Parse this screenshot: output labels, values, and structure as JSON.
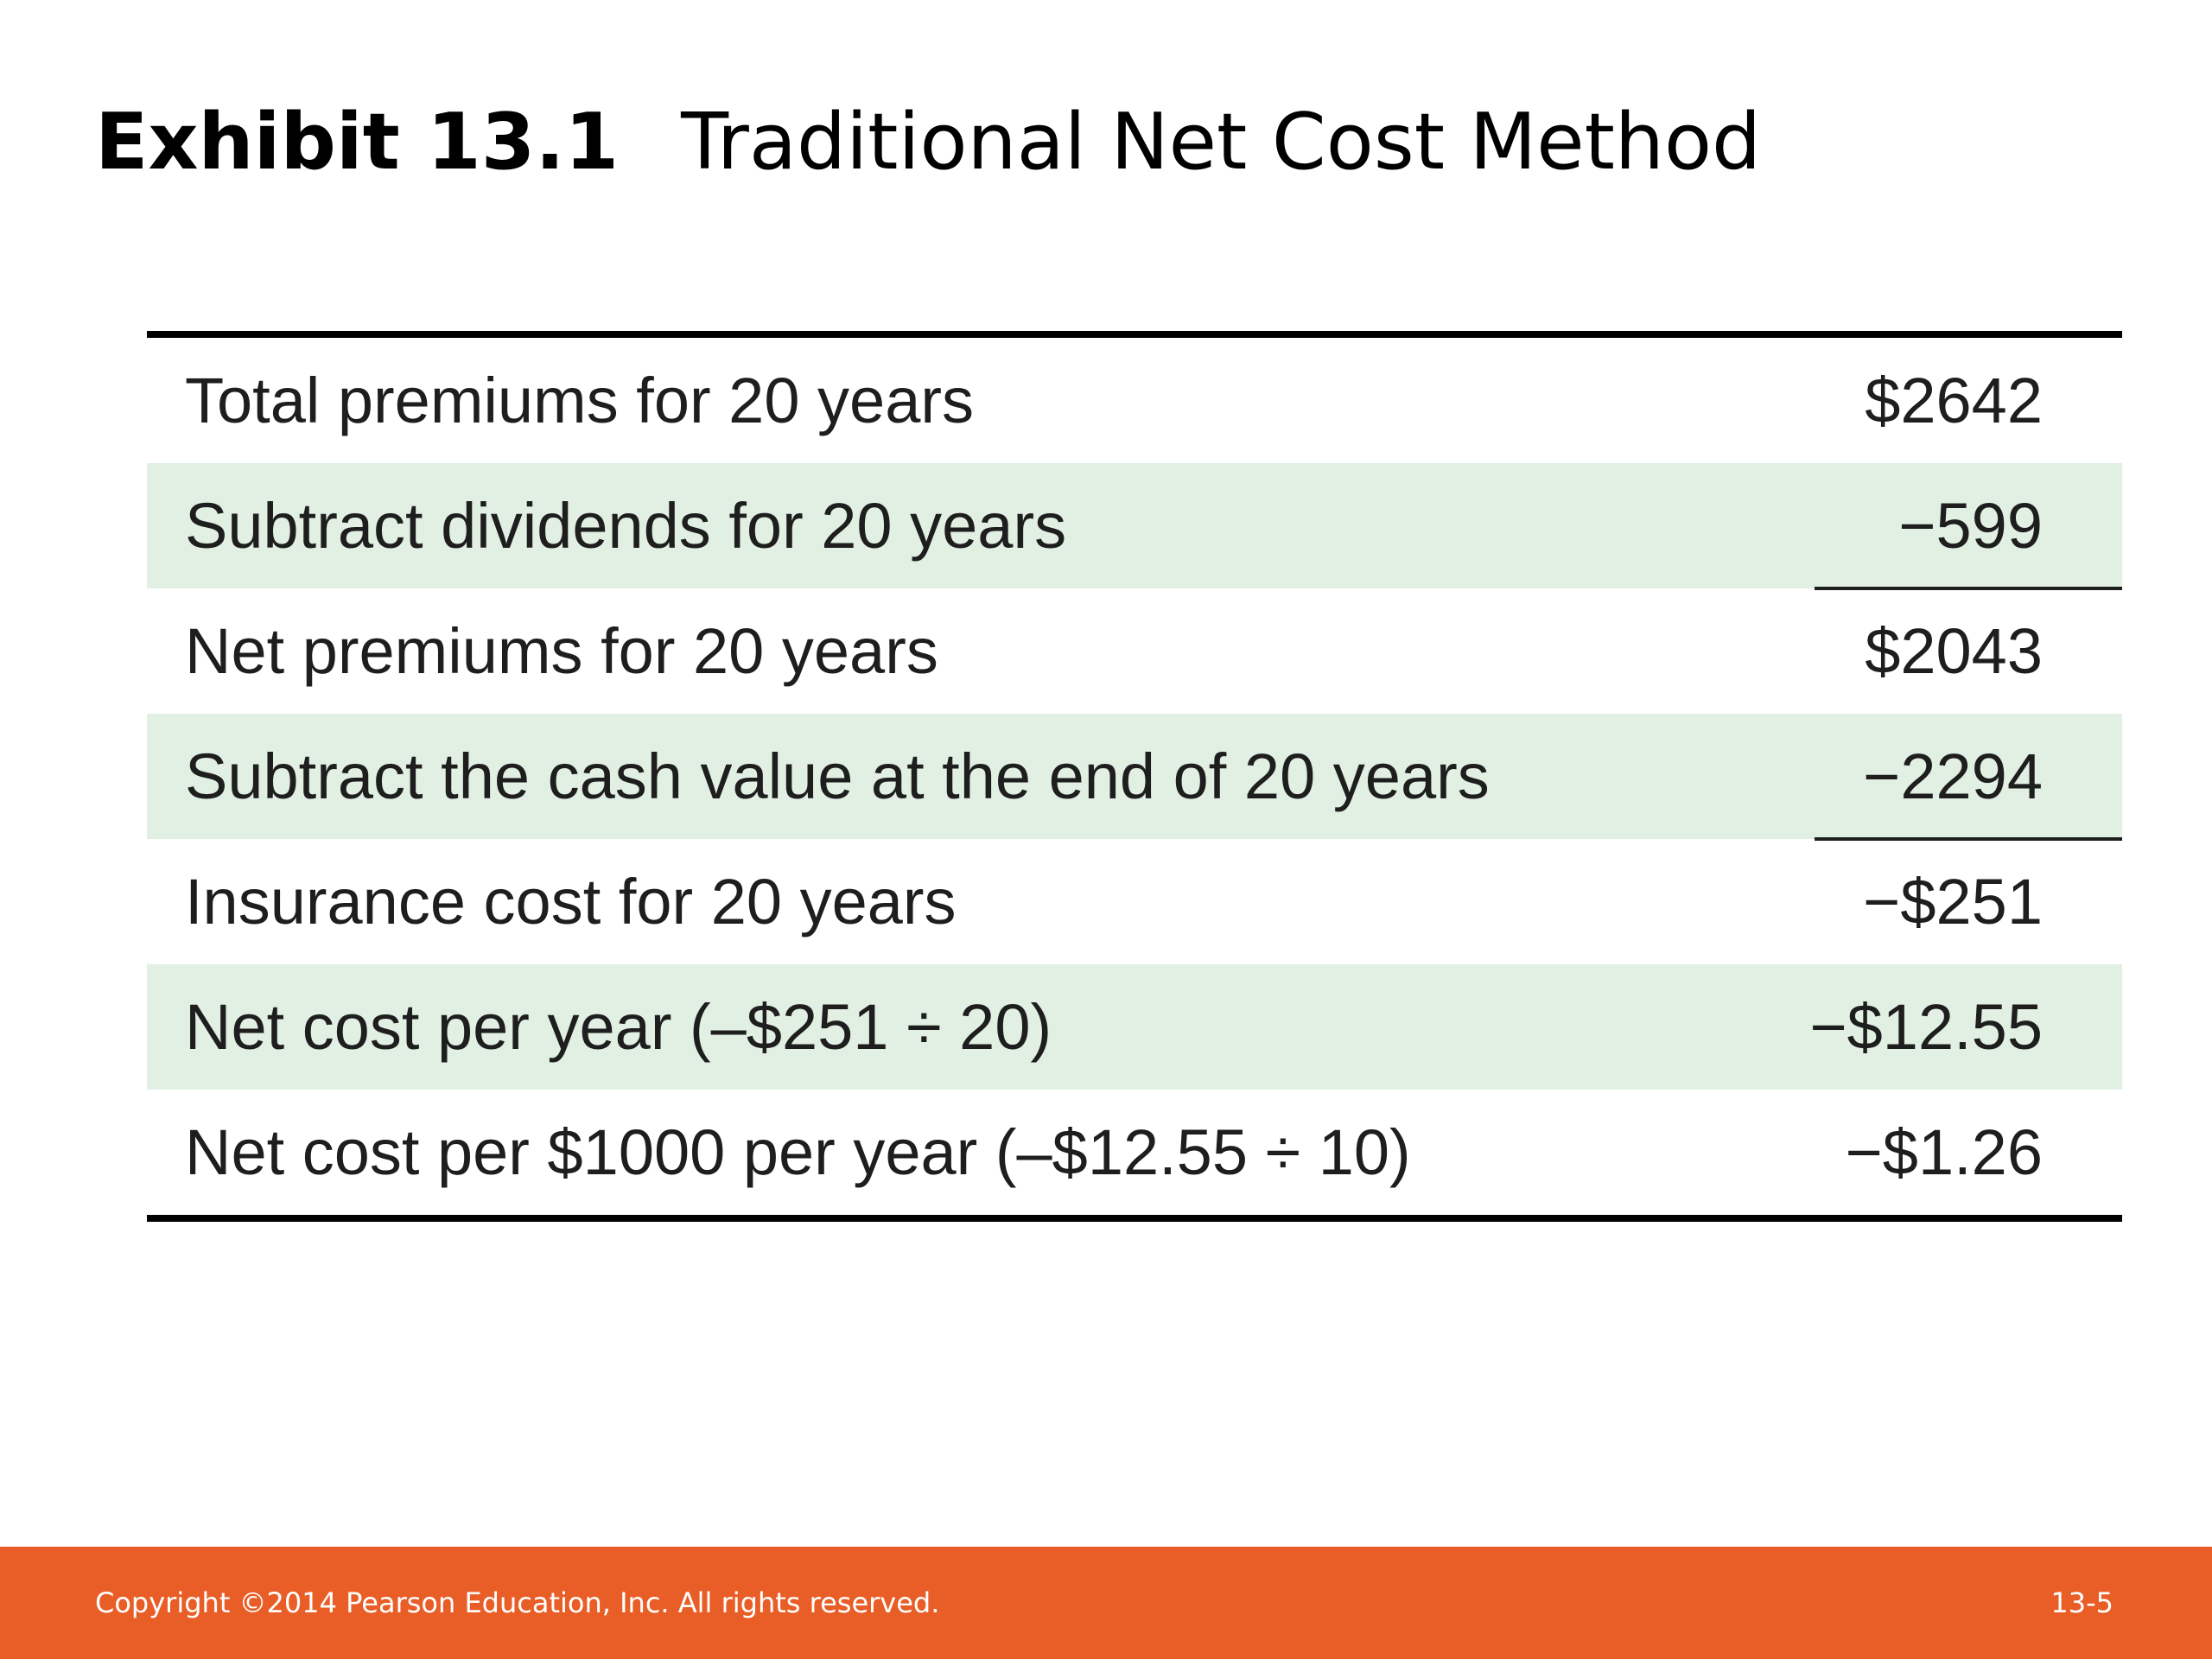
{
  "title": {
    "exhibit": "Exhibit 13.1",
    "text": "Traditional Net Cost Method"
  },
  "table": {
    "rows": [
      {
        "label": "Total premiums for 20 years",
        "value": "$2642"
      },
      {
        "label": "Subtract dividends for 20 years",
        "value": "−599"
      },
      {
        "label": "Net premiums for 20 years",
        "value": "$2043"
      },
      {
        "label": "Subtract the cash value at the end of 20 years",
        "value": "−2294"
      },
      {
        "label": "Insurance cost for 20 years",
        "value": "−$251"
      },
      {
        "label": "Net cost per year (–$251 ÷ 20)",
        "value": "−$12.55"
      },
      {
        "label": "Net cost per $1000 per year (–$12.55 ÷ 10)",
        "value": "−$1.26"
      }
    ]
  },
  "footer": {
    "copyright": "Copyright ©2014 Pearson Education, Inc. All rights reserved.",
    "slide_number": "13-5"
  },
  "colors": {
    "footer_bar": "#e95d26",
    "row_shade": "#e1f0e3"
  }
}
